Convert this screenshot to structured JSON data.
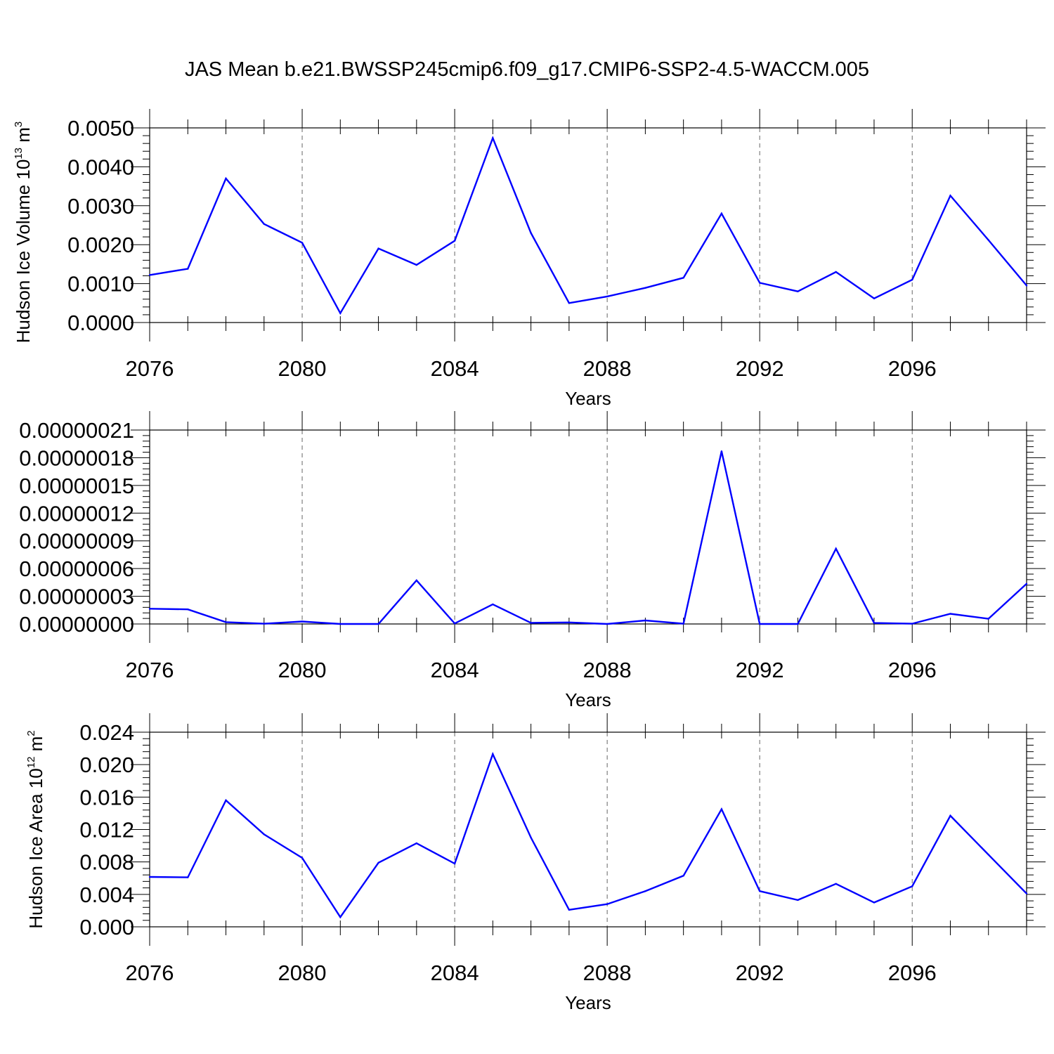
{
  "figure_title": "JAS Mean b.e21.BWSSP245cmip6.f09_g17.CMIP6-SSP2-4.5-WACCM.005",
  "line_color": "#0000ff",
  "chart_data": [
    {
      "type": "line",
      "ylabel": {
        "text": "Hudson Ice Volume 10",
        "exponent": "13",
        "unit": "m",
        "unit_exponent": "3"
      },
      "xlabel": "Years",
      "xlim": [
        2076,
        2099
      ],
      "ylim": [
        0.0,
        0.005
      ],
      "x_ticks": [
        2076,
        2080,
        2084,
        2088,
        2092,
        2096
      ],
      "x_tick_labels": [
        "2076",
        "2080",
        "2084",
        "2088",
        "2092",
        "2096"
      ],
      "y_ticks": [
        0.0,
        0.001,
        0.002,
        0.003,
        0.004,
        0.005
      ],
      "y_tick_labels": [
        "0.0000",
        "0.0010",
        "0.0020",
        "0.0030",
        "0.0040",
        "0.0050"
      ],
      "x": [
        2076,
        2077,
        2078,
        2079,
        2080,
        2081,
        2082,
        2083,
        2084,
        2085,
        2086,
        2087,
        2088,
        2089,
        2090,
        2091,
        2092,
        2093,
        2094,
        2095,
        2096,
        2097,
        2098,
        2099
      ],
      "values": [
        0.00122,
        0.00138,
        0.0037,
        0.00253,
        0.00205,
        0.00024,
        0.0019,
        0.00148,
        0.0021,
        0.00474,
        0.0023,
        0.0005,
        0.00067,
        0.00089,
        0.00115,
        0.0028,
        0.00102,
        0.0008,
        0.0013,
        0.00062,
        0.0011,
        0.00326,
        0.00212,
        0.00095
      ]
    },
    {
      "type": "line",
      "ylabel": null,
      "xlabel": "Years",
      "xlim": [
        2076,
        2099
      ],
      "ylim": [
        0.0,
        2.1e-07
      ],
      "x_ticks": [
        2076,
        2080,
        2084,
        2088,
        2092,
        2096
      ],
      "x_tick_labels": [
        "2076",
        "2080",
        "2084",
        "2088",
        "2092",
        "2096"
      ],
      "y_ticks": [
        0.0,
        3e-08,
        6e-08,
        9e-08,
        1.2e-07,
        1.5e-07,
        1.8e-07,
        2.1e-07
      ],
      "y_tick_labels": [
        "0.00000000",
        "0.00000003",
        "0.00000006",
        "0.00000009",
        "0.00000012",
        "0.00000015",
        "0.00000018",
        "0.00000021"
      ],
      "x": [
        2076,
        2077,
        2078,
        2079,
        2080,
        2081,
        2082,
        2083,
        2084,
        2085,
        2086,
        2087,
        2088,
        2089,
        2090,
        2091,
        2092,
        2093,
        2094,
        2095,
        2096,
        2097,
        2098,
        2099
      ],
      "values": [
        1.65e-08,
        1.58e-08,
        2e-09,
        3e-10,
        2.7e-09,
        0.0,
        0.0,
        4.72e-08,
        5e-10,
        2.12e-08,
        1.2e-09,
        1.7e-09,
        0.0,
        3.8e-09,
        3e-10,
        1.87e-07,
        0.0,
        0.0,
        8.15e-08,
        1.1e-09,
        3e-10,
        1.1e-08,
        5.6e-09,
        4.35e-08
      ]
    },
    {
      "type": "line",
      "ylabel": {
        "text": "Hudson Ice Area 10",
        "exponent": "12",
        "unit": "m",
        "unit_exponent": "2"
      },
      "xlabel": "Years",
      "xlim": [
        2076,
        2099
      ],
      "ylim": [
        0.0,
        0.024
      ],
      "x_ticks": [
        2076,
        2080,
        2084,
        2088,
        2092,
        2096
      ],
      "x_tick_labels": [
        "2076",
        "2080",
        "2084",
        "2088",
        "2092",
        "2096"
      ],
      "y_ticks": [
        0.0,
        0.004,
        0.008,
        0.012,
        0.016,
        0.02,
        0.024
      ],
      "y_tick_labels": [
        "0.000",
        "0.004",
        "0.008",
        "0.012",
        "0.016",
        "0.020",
        "0.024"
      ],
      "x": [
        2076,
        2077,
        2078,
        2079,
        2080,
        2081,
        2082,
        2083,
        2084,
        2085,
        2086,
        2087,
        2088,
        2089,
        2090,
        2091,
        2092,
        2093,
        2094,
        2095,
        2096,
        2097,
        2098,
        2099
      ],
      "values": [
        0.00615,
        0.0061,
        0.0156,
        0.0114,
        0.0085,
        0.0012,
        0.0079,
        0.0103,
        0.0078,
        0.0213,
        0.011,
        0.0021,
        0.0028,
        0.0044,
        0.0063,
        0.0145,
        0.0044,
        0.0033,
        0.0053,
        0.003,
        0.005,
        0.0137,
        0.0089,
        0.0041
      ]
    }
  ]
}
